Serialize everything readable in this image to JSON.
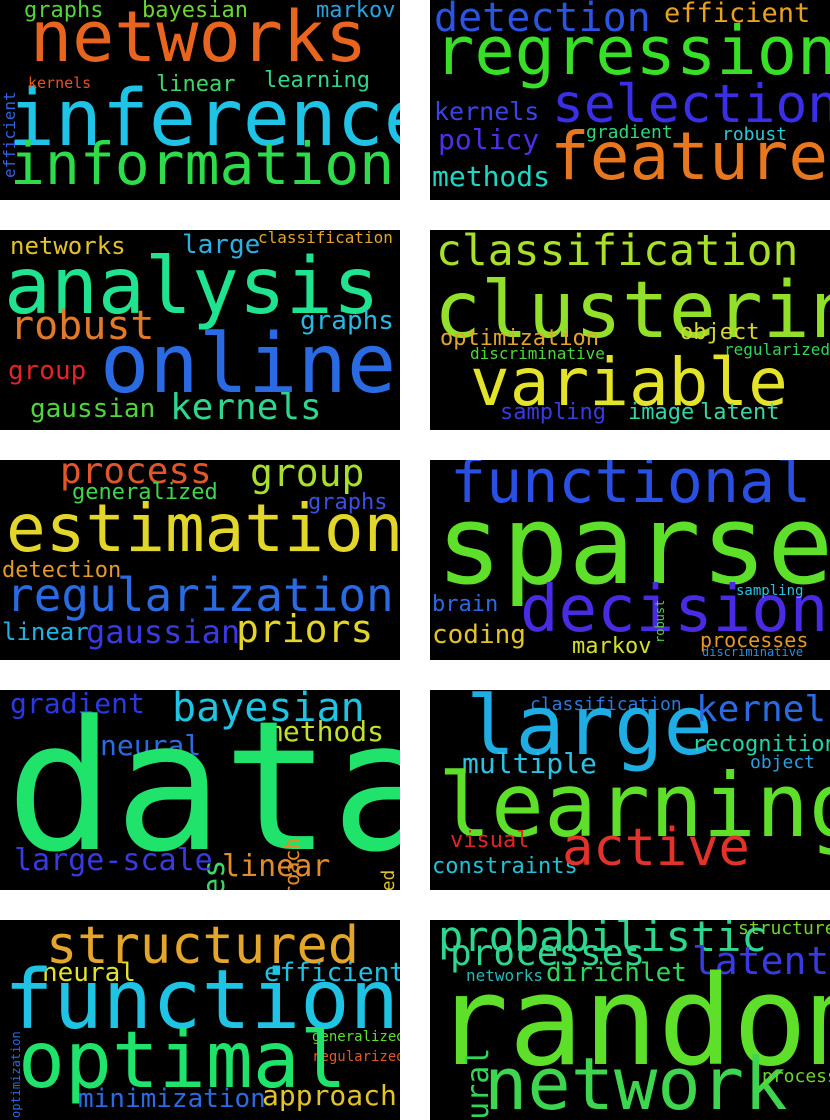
{
  "clouds": [
    {
      "words": [
        {
          "text": "networks",
          "color": "#e8651f"
        },
        {
          "text": "inference",
          "color": "#1fc3e6"
        },
        {
          "text": "information",
          "color": "#2edb4a"
        },
        {
          "text": "graphs",
          "color": "#52d63a"
        },
        {
          "text": "bayesian",
          "color": "#6cd82f"
        },
        {
          "text": "markov",
          "color": "#2aa3e0"
        },
        {
          "text": "efficient",
          "color": "#2f63e6"
        },
        {
          "text": "kernels",
          "color": "#e8531f"
        },
        {
          "text": "linear",
          "color": "#3ed66b"
        },
        {
          "text": "learning",
          "color": "#2fd68e"
        }
      ]
    },
    {
      "words": [
        {
          "text": "detection",
          "color": "#2a55e3"
        },
        {
          "text": "efficient",
          "color": "#e8a21f"
        },
        {
          "text": "regression",
          "color": "#37e026"
        },
        {
          "text": "kernels",
          "color": "#3a45e6"
        },
        {
          "text": "selection",
          "color": "#3a2ee6"
        },
        {
          "text": "policy",
          "color": "#4f2fe6"
        },
        {
          "text": "gradient",
          "color": "#2fd67a"
        },
        {
          "text": "robust",
          "color": "#2fc6d6"
        },
        {
          "text": "feature",
          "color": "#e8781f"
        },
        {
          "text": "methods",
          "color": "#1fd6c3"
        }
      ]
    },
    {
      "words": [
        {
          "text": "networks",
          "color": "#e3c32a"
        },
        {
          "text": "large",
          "color": "#2ab0e3"
        },
        {
          "text": "classification",
          "color": "#e3a52a"
        },
        {
          "text": "analysis",
          "color": "#1fe38e"
        },
        {
          "text": "robust",
          "color": "#e37a2a"
        },
        {
          "text": "graphs",
          "color": "#2ab8e3"
        },
        {
          "text": "online",
          "color": "#2a6be3"
        },
        {
          "text": "group",
          "color": "#e3232a"
        },
        {
          "text": "gaussian",
          "color": "#4ed63a"
        },
        {
          "text": "kernels",
          "color": "#2fd68e"
        }
      ]
    },
    {
      "words": [
        {
          "text": "classification",
          "color": "#a8e02a"
        },
        {
          "text": "clustering",
          "color": "#93e02a"
        },
        {
          "text": "optimization",
          "color": "#e3a52a"
        },
        {
          "text": "object",
          "color": "#d6d62a"
        },
        {
          "text": "discriminative",
          "color": "#4ed63a"
        },
        {
          "text": "regularized",
          "color": "#2fd65a"
        },
        {
          "text": "variable",
          "color": "#e3e32a"
        },
        {
          "text": "sampling",
          "color": "#3a3ae3"
        },
        {
          "text": "image",
          "color": "#2fd6a8"
        },
        {
          "text": "latent",
          "color": "#3ed6a0"
        }
      ]
    },
    {
      "words": [
        {
          "text": "process",
          "color": "#e3562a"
        },
        {
          "text": "group",
          "color": "#a8e02a"
        },
        {
          "text": "generalized",
          "color": "#3ed64e"
        },
        {
          "text": "graphs",
          "color": "#3a4fe3"
        },
        {
          "text": "estimation",
          "color": "#e3d62a"
        },
        {
          "text": "detection",
          "color": "#e39a2a"
        },
        {
          "text": "regularization",
          "color": "#2a6be3"
        },
        {
          "text": "linear",
          "color": "#1fb3e3"
        },
        {
          "text": "gaussian",
          "color": "#3a3ae3"
        },
        {
          "text": "priors",
          "color": "#e3d62a"
        }
      ]
    },
    {
      "words": [
        {
          "text": "functional",
          "color": "#2a4fe3"
        },
        {
          "text": "sparse",
          "color": "#5ee02a"
        },
        {
          "text": "brain",
          "color": "#2a6be3"
        },
        {
          "text": "decision",
          "color": "#4a2ae3"
        },
        {
          "text": "robust",
          "color": "#4ed63a"
        },
        {
          "text": "sampling",
          "color": "#2ac3e3"
        },
        {
          "text": "coding",
          "color": "#e3c32a"
        },
        {
          "text": "markov",
          "color": "#d6e02a"
        },
        {
          "text": "processes",
          "color": "#e39a2a"
        },
        {
          "text": "discriminative",
          "color": "#2a8ee3"
        }
      ]
    },
    {
      "words": [
        {
          "text": "gradient",
          "color": "#2a3ae3"
        },
        {
          "text": "bayesian",
          "color": "#1fc3e3"
        },
        {
          "text": "neural",
          "color": "#2a6be3"
        },
        {
          "text": "methods",
          "color": "#c3e02a"
        },
        {
          "text": "data",
          "color": "#1fe36b"
        },
        {
          "text": "approach",
          "color": "#e38a2a"
        },
        {
          "text": "structured",
          "color": "#e3c32a"
        },
        {
          "text": "rates",
          "color": "#3ed66b"
        },
        {
          "text": "large-scale",
          "color": "#3a3ae3"
        },
        {
          "text": "linear",
          "color": "#e38a2a"
        }
      ]
    },
    {
      "words": [
        {
          "text": "classification",
          "color": "#2a7ae3"
        },
        {
          "text": "large",
          "color": "#1faee3"
        },
        {
          "text": "kernel",
          "color": "#2a6be3"
        },
        {
          "text": "recognition",
          "color": "#1fd6a8"
        },
        {
          "text": "object",
          "color": "#2a9ee3"
        },
        {
          "text": "multiple",
          "color": "#2ac3e3"
        },
        {
          "text": "learning",
          "color": "#5ee02a"
        },
        {
          "text": "visual",
          "color": "#e3232a"
        },
        {
          "text": "constraints",
          "color": "#1fc3d6"
        },
        {
          "text": "active",
          "color": "#e3322a"
        }
      ]
    },
    {
      "words": [
        {
          "text": "structured",
          "color": "#e3a52a"
        },
        {
          "text": "neural",
          "color": "#e3e32a"
        },
        {
          "text": "efficient",
          "color": "#1fc3e3"
        },
        {
          "text": "functions",
          "color": "#1fc3e3"
        },
        {
          "text": "optimization",
          "color": "#2a6be3"
        },
        {
          "text": "generalized",
          "color": "#5ee02a"
        },
        {
          "text": "regularized",
          "color": "#e3562a"
        },
        {
          "text": "optimal",
          "color": "#1fe36b"
        },
        {
          "text": "minimization",
          "color": "#2a6be3"
        },
        {
          "text": "approach",
          "color": "#e3c32a"
        }
      ]
    },
    {
      "words": [
        {
          "text": "probabilistic",
          "color": "#2fd68e"
        },
        {
          "text": "structured",
          "color": "#6ed62a"
        },
        {
          "text": "processes",
          "color": "#2fd68e"
        },
        {
          "text": "latent",
          "color": "#3a3ae3"
        },
        {
          "text": "networks",
          "color": "#2ab8b8"
        },
        {
          "text": "dirichlet",
          "color": "#2fd65a"
        },
        {
          "text": "random",
          "color": "#5ee02a"
        },
        {
          "text": "neural",
          "color": "#2fd65a"
        },
        {
          "text": "network",
          "color": "#3ed64e"
        },
        {
          "text": "process",
          "color": "#6ed62a"
        }
      ]
    }
  ]
}
